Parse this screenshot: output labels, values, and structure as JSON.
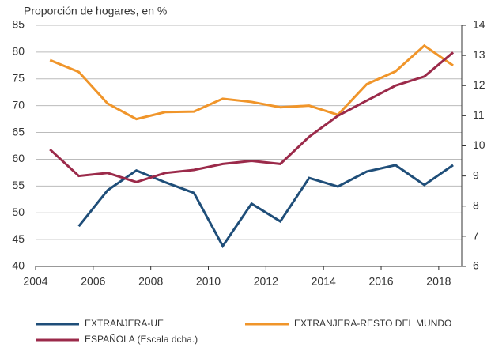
{
  "chart_data": {
    "type": "line",
    "title": "Proporción de hogares, en %",
    "x": [
      2004.5,
      2005.5,
      2006.5,
      2007.5,
      2008.5,
      2009.5,
      2010.5,
      2011.5,
      2012.5,
      2013.5,
      2014.5,
      2015.5,
      2016.5,
      2017.5,
      2018.5
    ],
    "series": [
      {
        "name": "EXTRANJERA-UE",
        "color": "#1f4e79",
        "values": [
          null,
          47.5,
          54.2,
          57.9,
          55.7,
          53.7,
          43.8,
          51.7,
          48.4,
          56.5,
          54.9,
          57.7,
          58.9,
          55.2,
          58.9
        ]
      },
      {
        "name": "EXTRANJERA-RESTO DEL MUNDO",
        "color": "#f0952a",
        "values": [
          78.5,
          76.3,
          70.4,
          67.5,
          68.8,
          68.9,
          71.3,
          70.7,
          69.7,
          70.0,
          68.3,
          74.0,
          76.4,
          81.2,
          77.5
        ]
      },
      {
        "name": "ESPAÑOLA (Escala dcha.)",
        "color": "#9b2a4a",
        "axis": "y2",
        "values": [
          9.88,
          9.0,
          9.1,
          8.8,
          9.1,
          9.2,
          9.4,
          9.5,
          9.4,
          10.3,
          11.0,
          11.5,
          12.0,
          12.3,
          13.1
        ]
      }
    ],
    "xlim": [
      2004,
      2018.8
    ],
    "xticks": [
      2004,
      2006,
      2008,
      2010,
      2012,
      2014,
      2016,
      2018
    ],
    "ylim": [
      40,
      85
    ],
    "yticks": [
      40,
      45,
      50,
      55,
      60,
      65,
      70,
      75,
      80,
      85
    ],
    "y2lim": [
      6,
      14
    ],
    "y2ticks": [
      6,
      7,
      8,
      9,
      10,
      11,
      12,
      13,
      14
    ],
    "grid": true
  }
}
